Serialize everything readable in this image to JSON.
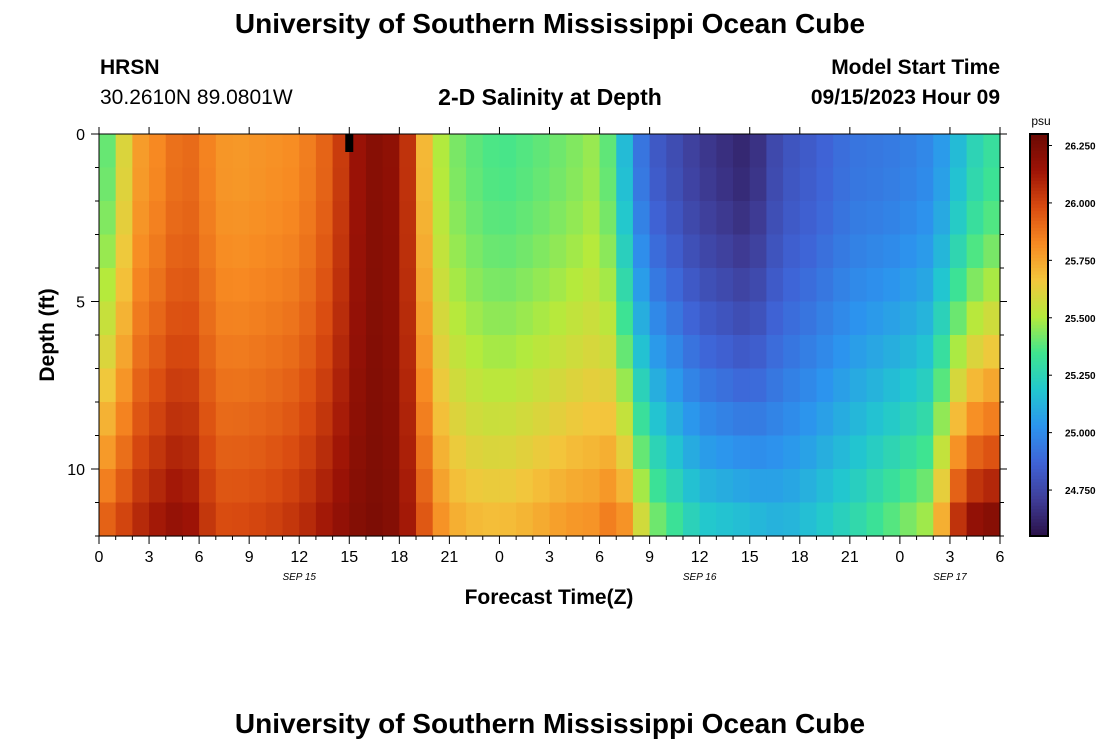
{
  "header": {
    "title": "University of Southern Mississippi Ocean Cube",
    "station": "HRSN",
    "coordinates": "30.2610N  89.0801W",
    "subtitle": "2-D Salinity at Depth",
    "model_start_label": "Model Start Time",
    "model_start_value": "09/15/2023 Hour 09"
  },
  "footer": {
    "title": "University of Southern Mississippi Ocean Cube"
  },
  "colors": {
    "colormap": [
      "#2a1148",
      "#3f3d98",
      "#3f63d6",
      "#2c94ee",
      "#22c7cf",
      "#3fe58f",
      "#b5ea3c",
      "#f3c63c",
      "#f78a22",
      "#d94b10",
      "#9d1306",
      "#6a0a04"
    ]
  },
  "chart_data": {
    "type": "heatmap",
    "title": "2-D Salinity at Depth",
    "xlabel": "Forecast Time(Z)",
    "ylabel": "Depth (ft)",
    "colorbar_label": "psu",
    "colorbar_ticks": [
      "26.250",
      "26.000",
      "25.750",
      "25.500",
      "25.250",
      "25.000",
      "24.750"
    ],
    "colorbar_range": [
      24.55,
      26.3
    ],
    "x_tick_labels": [
      "0",
      "3",
      "6",
      "9",
      "12",
      "15",
      "18",
      "21",
      "0",
      "3",
      "6",
      "9",
      "12",
      "15",
      "18",
      "21",
      "0",
      "3",
      "6"
    ],
    "date_labels": [
      "SEP 15",
      "SEP 16",
      "SEP 17"
    ],
    "xlim_hours": [
      0,
      54
    ],
    "ylim": [
      0,
      12
    ],
    "y_tick_labels": [
      "0",
      "5",
      "10"
    ],
    "y_tick_values": [
      0,
      5,
      10
    ],
    "depth_levels": [
      0.5,
      1.5,
      2.5,
      3.5,
      4.5,
      5.5,
      6.5,
      7.5,
      8.5,
      9.5,
      10.5,
      11.5
    ],
    "profile_keyframes": {
      "hours": [
        0,
        1,
        2,
        3,
        4,
        5,
        6,
        7,
        8,
        10,
        12,
        14,
        15,
        16,
        17,
        18,
        19,
        19.5,
        20,
        21,
        22,
        24,
        26,
        28,
        30,
        31,
        32,
        33,
        36,
        39,
        40,
        41,
        42,
        43,
        45,
        48,
        50,
        51,
        52,
        53,
        54
      ],
      "surface": [
        25.35,
        25.45,
        25.75,
        25.8,
        25.85,
        25.92,
        25.88,
        25.8,
        25.78,
        25.8,
        25.82,
        25.95,
        26.1,
        26.2,
        26.22,
        26.15,
        25.95,
        25.7,
        25.55,
        25.45,
        25.4,
        25.35,
        25.38,
        25.42,
        25.48,
        25.3,
        25.0,
        24.85,
        24.7,
        24.62,
        24.72,
        24.8,
        24.82,
        24.85,
        24.92,
        24.95,
        25.0,
        25.1,
        25.2,
        25.3,
        25.32
      ],
      "bottom": [
        25.9,
        25.95,
        26.05,
        26.1,
        26.15,
        26.18,
        26.1,
        25.98,
        25.98,
        26.0,
        26.05,
        26.15,
        26.2,
        26.24,
        26.24,
        26.2,
        26.05,
        25.95,
        25.85,
        25.75,
        25.7,
        25.68,
        25.72,
        25.78,
        25.8,
        25.9,
        25.7,
        25.45,
        25.2,
        25.15,
        25.12,
        25.12,
        25.14,
        25.18,
        25.25,
        25.4,
        25.5,
        25.95,
        26.15,
        26.2,
        26.22
      ]
    }
  },
  "axes": {
    "max_marker_hour": 15
  }
}
